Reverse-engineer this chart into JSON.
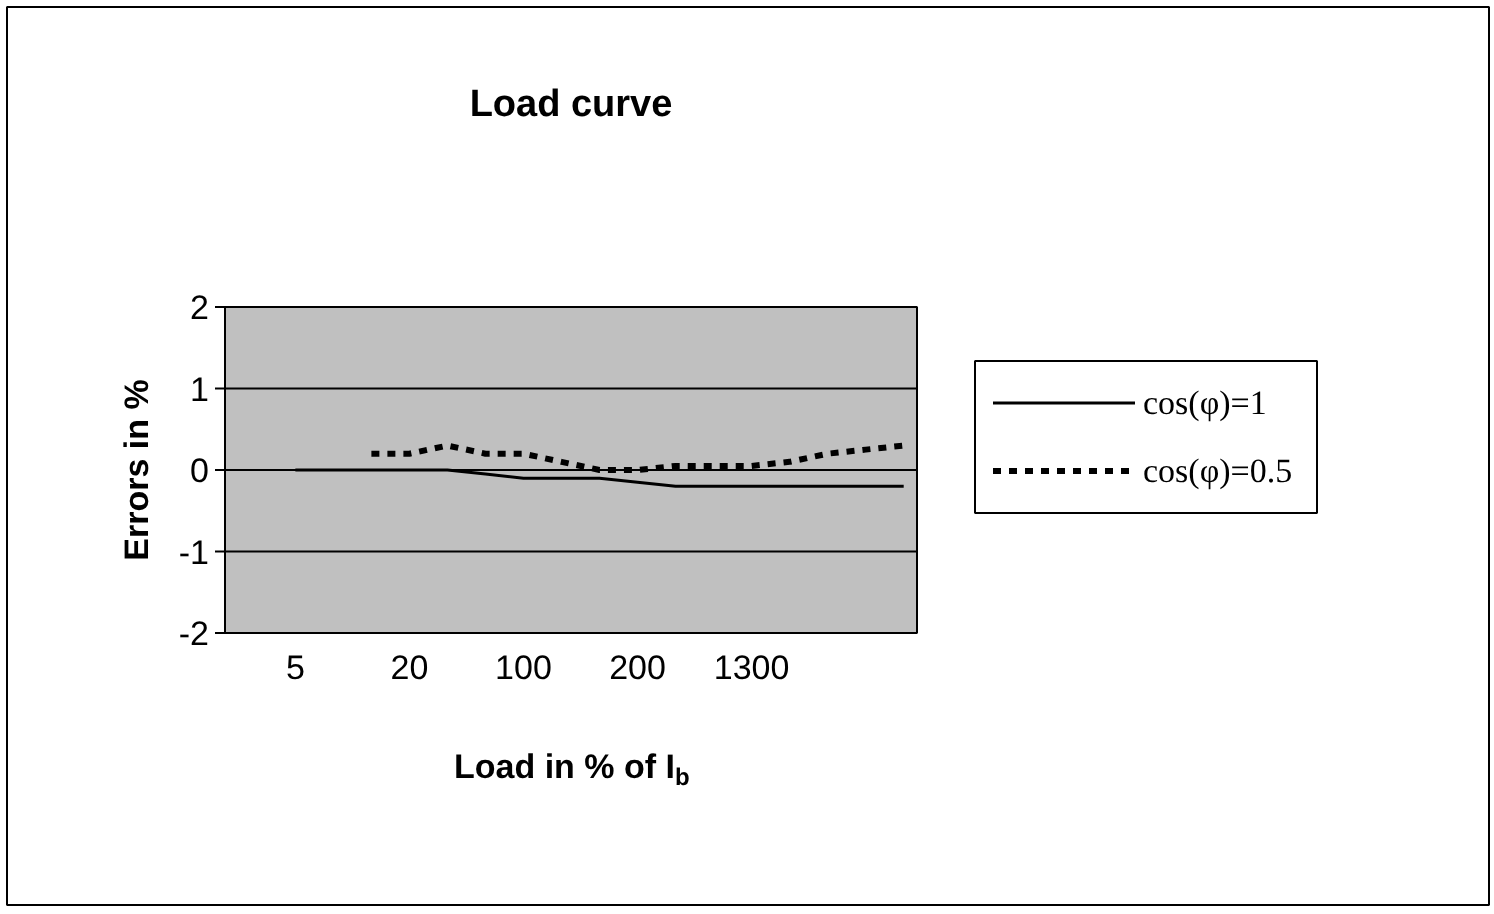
{
  "chart_data": {
    "type": "line",
    "title": "Load curve",
    "xlabel": "Load in % of I$_{b}$",
    "ylabel": "Errors in %",
    "categories": [
      "5",
      null,
      null,
      "20",
      null,
      null,
      "100",
      null,
      null,
      "200",
      null,
      null,
      "1300",
      null,
      null,
      null,
      null
    ],
    "series": [
      {
        "name": "cos(φ)=1",
        "color": "#000000",
        "line_style": "solid",
        "values": [
          0,
          0,
          0,
          0,
          0,
          -0.05,
          -0.1,
          -0.1,
          -0.1,
          -0.15,
          -0.2,
          -0.2,
          -0.2,
          -0.2,
          -0.2,
          -0.2,
          -0.2
        ]
      },
      {
        "name": "cos(φ)=0.5",
        "color": "#000000",
        "line_style": "dotted",
        "values": [
          null,
          null,
          0.2,
          0.2,
          0.3,
          0.2,
          0.2,
          0.1,
          0,
          0,
          0.05,
          0.05,
          0.05,
          0.1,
          0.2,
          0.25,
          0.3
        ]
      }
    ],
    "ylim": [
      -2,
      2
    ],
    "yticks": [
      -2,
      -1,
      0,
      1,
      2
    ],
    "grid": "y",
    "legend": "right",
    "marker": "none"
  }
}
